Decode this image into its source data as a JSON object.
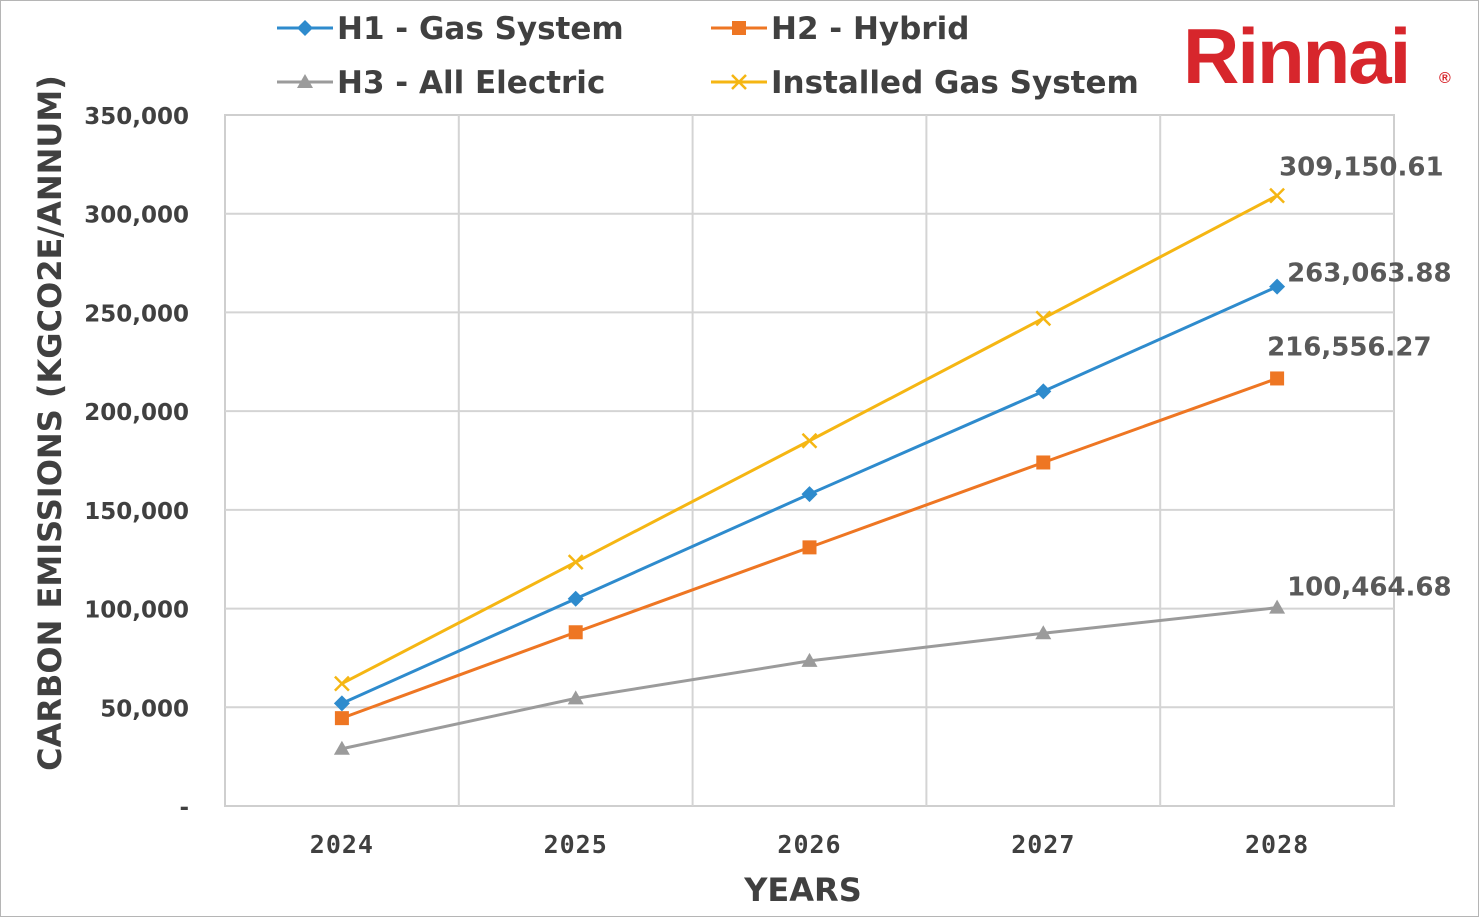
{
  "chart_data": {
    "type": "line",
    "title": "",
    "brand": {
      "name": "Rinnai",
      "registered_mark": "®",
      "color": "#d7262c"
    },
    "xlabel": "YEARS",
    "ylabel": "CARBON EMISSIONS (KGCO2E/ANNUM)",
    "x": [
      "2024",
      "2025",
      "2026",
      "2027",
      "2028"
    ],
    "ylim": [
      0,
      350000
    ],
    "yticks": [
      0,
      50000,
      100000,
      150000,
      200000,
      250000,
      300000,
      350000
    ],
    "ytick_labels": [
      "-",
      "50,000",
      "100,000",
      "150,000",
      "200,000",
      "250,000",
      "300,000",
      "350,000"
    ],
    "grid": true,
    "legend_position": "top",
    "series": [
      {
        "name": "H1 - Gas System",
        "color": "#2e8bcd",
        "marker": "diamond",
        "values": [
          52000,
          105000,
          158000,
          210000,
          263063.88
        ],
        "end_label": "263,063.88"
      },
      {
        "name": "H2 - Hybrid",
        "color": "#ee7623",
        "marker": "square",
        "values": [
          44500,
          88000,
          131000,
          174000,
          216556.27
        ],
        "end_label": "216,556.27"
      },
      {
        "name": "H3 - All Electric",
        "color": "#9b9b9b",
        "marker": "triangle",
        "values": [
          29000,
          54500,
          73500,
          87500,
          100464.68
        ],
        "end_label": "100,464.68"
      },
      {
        "name": "Installed Gas System",
        "color": "#f5b613",
        "marker": "x",
        "values": [
          62000,
          123500,
          185000,
          247000,
          309150.61
        ],
        "end_label": "309,150.61"
      }
    ]
  }
}
